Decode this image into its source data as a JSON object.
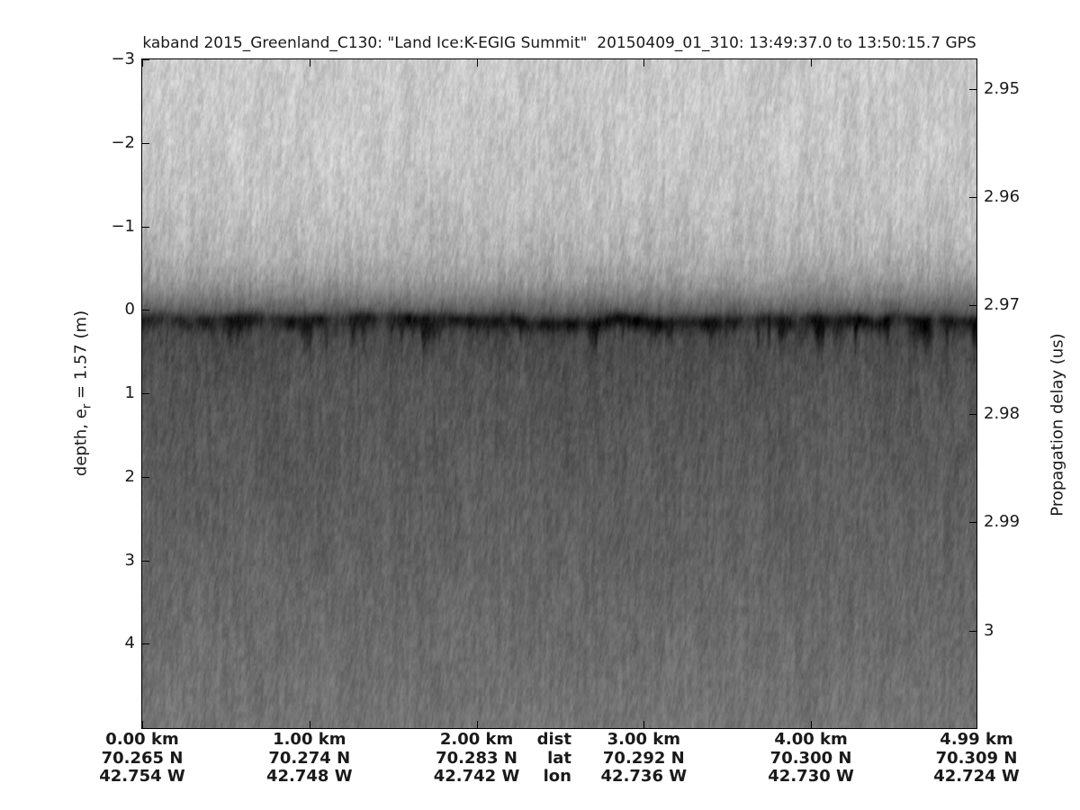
{
  "title": "kaband 2015_Greenland_C130: \"Land Ice:K-EGIG Summit\"  20150409_01_310: 13:49:37.0 to 13:50:15.7 GPS",
  "left_axis": {
    "label_pre": "depth, e",
    "label_sub": "r",
    "label_post": " = 1.57 (m)",
    "ticks": [
      "−3",
      "−2",
      "−1",
      "0",
      "1",
      "2",
      "3",
      "4"
    ]
  },
  "right_axis": {
    "label": "Propagation delay (us)",
    "ticks": [
      "2.95",
      "2.96",
      "2.97",
      "2.98",
      "2.99",
      "3"
    ]
  },
  "bottom_axis": {
    "header": {
      "dist": "dist",
      "lat": "lat",
      "lon": "lon"
    },
    "columns": [
      {
        "km_value": 0.0,
        "dist": "0.00 km",
        "lat": "70.265 N",
        "lon": "42.754 W"
      },
      {
        "km_value": 1.0,
        "dist": "1.00 km",
        "lat": "70.274 N",
        "lon": "42.748 W"
      },
      {
        "km_value": 2.0,
        "dist": "2.00 km",
        "lat": "70.283 N",
        "lon": "42.742 W"
      },
      {
        "km_value": 3.0,
        "dist": "3.00 km",
        "lat": "70.292 N",
        "lon": "42.736 W"
      },
      {
        "km_value": 4.0,
        "dist": "4.00 km",
        "lat": "70.300 N",
        "lon": "42.730 W"
      },
      {
        "km_value": 4.99,
        "dist": "4.99 km",
        "lat": "70.309 N",
        "lon": "42.724 W"
      }
    ]
  },
  "chart_data": {
    "type": "heatmap",
    "title": "kaband 2015_Greenland_C130: \"Land Ice:K-EGIG Summit\"  20150409_01_310: 13:49:37.0 to 13:50:15.7 GPS",
    "colormap": "grayscale radar intensity (dark = strong return)",
    "x_axis": {
      "label": "dist (km)",
      "range": [
        0,
        4.99
      ],
      "tick_values": [
        0,
        1,
        2,
        3,
        4,
        4.99
      ]
    },
    "y_axis_left": {
      "label": "depth, e_r = 1.57 (m)",
      "range": [
        -3,
        5.01
      ],
      "tick_values": [
        -3,
        -2,
        -1,
        0,
        1,
        2,
        3,
        4
      ]
    },
    "y_axis_right": {
      "label": "Propagation delay (us)",
      "range": [
        2.9473,
        3.009
      ],
      "tick_values": [
        2.95,
        2.96,
        2.97,
        2.98,
        2.99,
        3
      ]
    },
    "time_span_gps": "13:49:37.0 to 13:50:15.7",
    "segment": "20150409_01_310",
    "geo_track": {
      "start": {
        "lat": "70.265 N",
        "lon": "42.754 W"
      },
      "end": {
        "lat": "70.309 N",
        "lon": "42.724 W"
      },
      "length_km": 4.99
    },
    "features": {
      "surface_return_depth_m": 0,
      "surface_return_delay_us": 2.97,
      "above_surface_gray": "#c6c6c6",
      "surface_band_gray": "#2b2b2b",
      "below_surface_gray": "#5c5c5c",
      "deep_gray": "#747474",
      "texture": "vertical speckle streaks; bright noise above surface, dark band at surface, medium-dark speckle below brightening slightly with depth"
    },
    "grid": false,
    "legend": false
  },
  "colors": {
    "background": "#ffffff",
    "text": "#1a1a1a",
    "axis_line": "#000000"
  }
}
